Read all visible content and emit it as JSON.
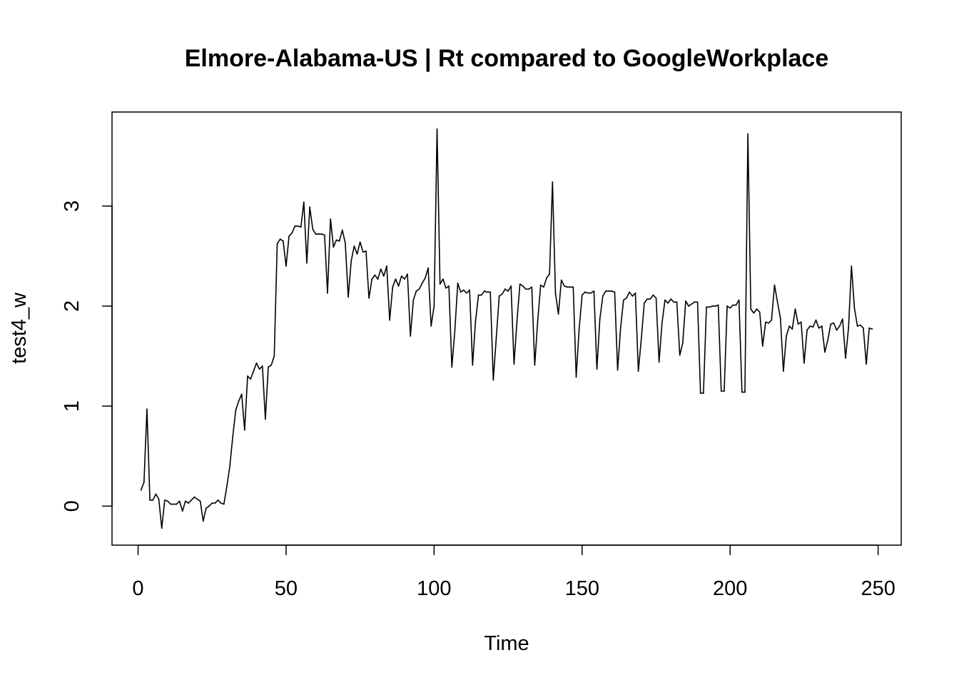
{
  "chart_data": {
    "type": "line",
    "title": "Elmore-Alabama-US | Rt compared to GoogleWorkplace",
    "xlabel": "Time",
    "ylabel": "test4_w",
    "xlim": [
      -8.8,
      257.8
    ],
    "ylim": [
      -0.39,
      3.94
    ],
    "x_ticks": [
      0,
      50,
      100,
      150,
      200,
      250
    ],
    "y_ticks": [
      0,
      1,
      2,
      3
    ],
    "grid": false,
    "legend": "none",
    "line_color": "#000000",
    "series": [
      {
        "x": [
          1,
          2,
          3,
          4,
          5,
          6,
          7,
          8,
          9,
          10,
          11,
          12,
          13,
          14,
          15,
          16,
          17,
          18,
          19,
          20,
          21,
          22,
          23,
          24,
          25,
          26,
          27,
          28,
          29,
          30,
          31,
          32,
          33,
          34,
          35,
          36,
          37,
          38,
          39,
          40,
          41,
          42,
          43,
          44,
          45,
          46,
          47,
          48,
          49,
          50,
          51,
          52,
          53,
          54,
          55,
          56,
          57,
          58,
          59,
          60,
          61,
          62,
          63,
          64,
          65,
          66,
          67,
          68,
          69,
          70,
          71,
          72,
          73,
          74,
          75,
          76,
          77,
          78,
          79,
          80,
          81,
          82,
          83,
          84,
          85,
          86,
          87,
          88,
          89,
          90,
          91,
          92,
          93,
          94,
          95,
          96,
          97,
          98,
          99,
          100,
          101,
          102,
          103,
          104,
          105,
          106,
          107,
          108,
          109,
          110,
          111,
          112,
          113,
          114,
          115,
          116,
          117,
          118,
          119,
          120,
          121,
          122,
          123,
          124,
          125,
          126,
          127,
          128,
          129,
          130,
          131,
          132,
          133,
          134,
          135,
          136,
          137,
          138,
          139,
          140,
          141,
          142,
          143,
          144,
          145,
          146,
          147,
          148,
          149,
          150,
          151,
          152,
          153,
          154,
          155,
          156,
          157,
          158,
          159,
          160,
          161,
          162,
          163,
          164,
          165,
          166,
          167,
          168,
          169,
          170,
          171,
          172,
          173,
          174,
          175,
          176,
          177,
          178,
          179,
          180,
          181,
          182,
          183,
          184,
          185,
          186,
          187,
          188,
          189,
          190,
          191,
          192,
          193,
          194,
          195,
          196,
          197,
          198,
          199,
          200,
          201,
          202,
          203,
          204,
          205,
          206,
          207,
          208,
          209,
          210,
          211,
          212,
          213,
          214,
          215,
          216,
          217,
          218,
          219,
          220,
          221,
          222,
          223,
          224,
          225,
          226,
          227,
          228,
          229,
          230,
          231,
          232,
          233,
          234,
          235,
          236,
          237,
          238,
          239,
          240,
          241,
          242,
          243,
          244,
          245,
          246,
          247,
          248
        ],
        "values": [
          0.16,
          0.24,
          0.97,
          0.06,
          0.06,
          0.12,
          0.07,
          -0.22,
          0.06,
          0.05,
          0.02,
          0.02,
          0.02,
          0.05,
          -0.05,
          0.05,
          0.03,
          0.06,
          0.09,
          0.07,
          0.05,
          -0.15,
          -0.02,
          0.0,
          0.03,
          0.03,
          0.06,
          0.03,
          0.02,
          0.2,
          0.4,
          0.7,
          0.96,
          1.05,
          1.12,
          0.76,
          1.3,
          1.27,
          1.35,
          1.43,
          1.37,
          1.4,
          0.87,
          1.39,
          1.41,
          1.5,
          2.62,
          2.67,
          2.65,
          2.4,
          2.7,
          2.73,
          2.8,
          2.8,
          2.79,
          3.04,
          2.43,
          2.99,
          2.77,
          2.72,
          2.72,
          2.72,
          2.71,
          2.13,
          2.87,
          2.59,
          2.66,
          2.65,
          2.76,
          2.63,
          2.09,
          2.45,
          2.6,
          2.52,
          2.64,
          2.54,
          2.55,
          2.08,
          2.27,
          2.31,
          2.27,
          2.37,
          2.3,
          2.4,
          1.86,
          2.19,
          2.27,
          2.2,
          2.3,
          2.27,
          2.32,
          1.7,
          2.06,
          2.15,
          2.17,
          2.23,
          2.28,
          2.38,
          1.8,
          2.0,
          3.77,
          2.22,
          2.27,
          2.18,
          2.2,
          1.39,
          1.75,
          2.23,
          2.14,
          2.16,
          2.13,
          2.16,
          1.41,
          1.85,
          2.11,
          2.11,
          2.15,
          2.14,
          2.14,
          1.26,
          1.68,
          2.1,
          2.12,
          2.17,
          2.15,
          2.2,
          1.42,
          1.85,
          2.22,
          2.2,
          2.17,
          2.17,
          2.19,
          1.41,
          1.85,
          2.21,
          2.19,
          2.28,
          2.32,
          3.24,
          2.13,
          1.92,
          2.26,
          2.2,
          2.19,
          2.19,
          2.19,
          1.29,
          1.77,
          2.11,
          2.14,
          2.13,
          2.13,
          2.15,
          1.37,
          1.87,
          2.1,
          2.15,
          2.15,
          2.15,
          2.14,
          1.36,
          1.78,
          2.06,
          2.08,
          2.14,
          2.1,
          2.13,
          1.35,
          1.67,
          2.03,
          2.07,
          2.07,
          2.11,
          2.08,
          1.44,
          1.83,
          2.06,
          2.03,
          2.07,
          2.04,
          2.04,
          1.51,
          1.63,
          2.05,
          2.0,
          2.02,
          2.04,
          2.04,
          1.13,
          1.13,
          1.99,
          1.99,
          2.0,
          2.0,
          2.01,
          1.15,
          1.15,
          2.0,
          1.98,
          2.01,
          2.01,
          2.06,
          1.14,
          1.14,
          3.72,
          1.97,
          1.93,
          1.97,
          1.94,
          1.6,
          1.84,
          1.83,
          1.86,
          2.21,
          2.04,
          1.88,
          1.35,
          1.7,
          1.8,
          1.77,
          1.97,
          1.82,
          1.84,
          1.43,
          1.76,
          1.8,
          1.79,
          1.86,
          1.78,
          1.8,
          1.54,
          1.66,
          1.82,
          1.83,
          1.76,
          1.8,
          1.87,
          1.48,
          1.78,
          2.4,
          1.98,
          1.8,
          1.81,
          1.78,
          1.42,
          1.78,
          1.77
        ]
      }
    ]
  }
}
